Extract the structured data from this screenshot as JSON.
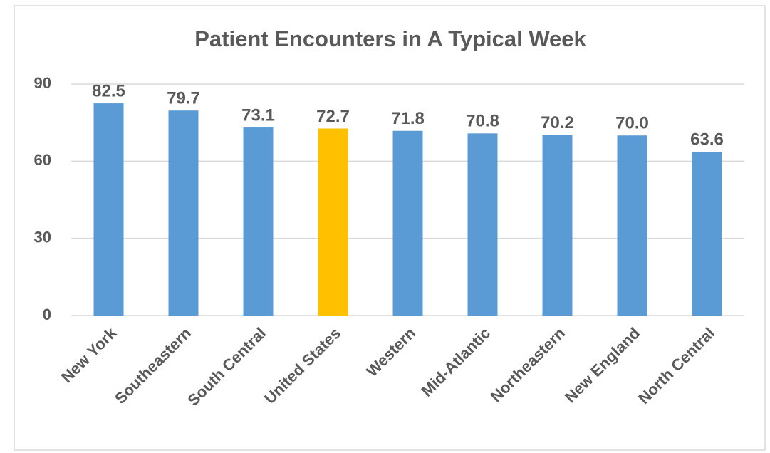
{
  "chart_data": {
    "type": "bar",
    "title": "Patient Encounters in A Typical Week",
    "categories": [
      "New York",
      "Southeastern",
      "South Central",
      "United States",
      "Western",
      "Mid-Atlantic",
      "Northeastern",
      "New England",
      "North Central"
    ],
    "values": [
      82.5,
      79.7,
      73.1,
      72.7,
      71.8,
      70.8,
      70.2,
      70,
      63.6
    ],
    "value_labels": [
      "82.5",
      "79.7",
      "73.1",
      "72.7",
      "71.8",
      "70.8",
      "70.2",
      "70.0",
      "63.6"
    ],
    "colors": [
      "#5b9bd5",
      "#5b9bd5",
      "#5b9bd5",
      "#ffc000",
      "#5b9bd5",
      "#5b9bd5",
      "#5b9bd5",
      "#5b9bd5",
      "#5b9bd5"
    ],
    "ylim": [
      0,
      90
    ],
    "yticks": [
      0,
      30,
      60,
      90
    ],
    "grid": true
  }
}
